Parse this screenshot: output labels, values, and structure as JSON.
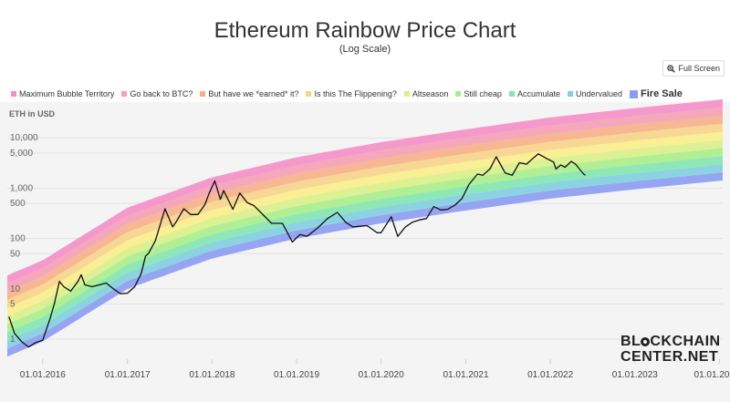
{
  "header": {
    "title": "Ethereum Rainbow Price Chart",
    "subtitle": "(Log Scale)",
    "fullscreen_label": "Full Screen"
  },
  "watermark": {
    "line1_a": "BL",
    "line1_b": "CKCHAIN",
    "line2": "CENTER.NET"
  },
  "colors": {
    "background": "#f4f4f4",
    "price_line": "#111111",
    "bands": [
      "#8c9cf2",
      "#81cfe0",
      "#83e6b0",
      "#a8ee8a",
      "#d9f08a",
      "#fbee8a",
      "#f8d48a",
      "#f6b087",
      "#f5a0b4",
      "#f58fc8"
    ]
  },
  "chart_data": {
    "type": "line",
    "title": "Ethereum Rainbow Price Chart",
    "subtitle": "(Log Scale)",
    "ylabel": "ETH in USD",
    "yscale": "log",
    "ylim": [
      0.4,
      40000
    ],
    "xlim": [
      "2015-08-01",
      "2024-01-15"
    ],
    "y_ticks": [
      {
        "value": 10000,
        "label": "10,000"
      },
      {
        "value": 5000,
        "label": "5,000"
      },
      {
        "value": 1000,
        "label": "1,000"
      },
      {
        "value": 500,
        "label": "500"
      },
      {
        "value": 100,
        "label": "100"
      },
      {
        "value": 50,
        "label": "50"
      },
      {
        "value": 10,
        "label": "10"
      },
      {
        "value": 5,
        "label": "5"
      },
      {
        "value": 1,
        "label": "1"
      }
    ],
    "x_ticks": [
      {
        "date": "2016-01-01",
        "label": "01.01.2016"
      },
      {
        "date": "2017-01-01",
        "label": "01.01.2017"
      },
      {
        "date": "2018-01-01",
        "label": "01.01.2018"
      },
      {
        "date": "2019-01-01",
        "label": "01.01.2019"
      },
      {
        "date": "2020-01-01",
        "label": "01.01.2020"
      },
      {
        "date": "2021-01-01",
        "label": "01.01.2021"
      },
      {
        "date": "2022-01-01",
        "label": "01.01.2022"
      },
      {
        "date": "2023-01-01",
        "label": "01.01.2023"
      },
      {
        "date": "2024-01-01",
        "label": "01.01.20"
      }
    ],
    "legend_position": "top",
    "legend": [
      {
        "label": "Maximum Bubble Territory",
        "color": "#f58fc8"
      },
      {
        "label": "Go back to BTC?",
        "color": "#f5a0b4"
      },
      {
        "label": "But have we *earned* it?",
        "color": "#f6b087"
      },
      {
        "label": "Is this The Flippening?",
        "color": "#f8d48a"
      },
      {
        "label": "Altseason",
        "color": "#d9f08a"
      },
      {
        "label": "Still cheap",
        "color": "#a8ee8a"
      },
      {
        "label": "Accumulate",
        "color": "#83e6b0"
      },
      {
        "label": "Undervalued",
        "color": "#81cfe0"
      },
      {
        "label": "Fire Sale",
        "color": "#8c9cf2",
        "bold": true
      }
    ],
    "rainbow_bands": [
      {
        "name": "Fire Sale",
        "lower": [
          {
            "date": "2015-08-01",
            "value": 0.45
          },
          {
            "date": "2016-01-01",
            "value": 0.9
          },
          {
            "date": "2017-01-01",
            "value": 10
          },
          {
            "date": "2018-01-01",
            "value": 40
          },
          {
            "date": "2019-01-01",
            "value": 100
          },
          {
            "date": "2020-01-01",
            "value": 200
          },
          {
            "date": "2021-01-01",
            "value": 360
          },
          {
            "date": "2022-01-01",
            "value": 620
          },
          {
            "date": "2023-01-01",
            "value": 950
          },
          {
            "date": "2024-01-01",
            "value": 1400
          }
        ]
      }
    ],
    "band_width_factor": 1.45,
    "band_count": 10,
    "series": [
      {
        "name": "ETH",
        "points": [
          [
            "2015-08-08",
            2.8
          ],
          [
            "2015-09-01",
            1.3
          ],
          [
            "2015-10-01",
            0.9
          ],
          [
            "2015-11-01",
            0.7
          ],
          [
            "2015-12-01",
            0.85
          ],
          [
            "2016-01-01",
            0.95
          ],
          [
            "2016-02-01",
            2.5
          ],
          [
            "2016-02-20",
            5
          ],
          [
            "2016-03-13",
            14
          ],
          [
            "2016-04-01",
            11
          ],
          [
            "2016-05-01",
            9
          ],
          [
            "2016-06-01",
            14
          ],
          [
            "2016-06-15",
            19
          ],
          [
            "2016-07-01",
            12
          ],
          [
            "2016-08-01",
            11
          ],
          [
            "2016-09-01",
            12
          ],
          [
            "2016-10-01",
            13
          ],
          [
            "2016-11-01",
            10
          ],
          [
            "2016-12-01",
            8
          ],
          [
            "2017-01-01",
            8.2
          ],
          [
            "2017-02-01",
            11
          ],
          [
            "2017-03-01",
            20
          ],
          [
            "2017-03-20",
            45
          ],
          [
            "2017-04-01",
            50
          ],
          [
            "2017-05-01",
            90
          ],
          [
            "2017-06-12",
            390
          ],
          [
            "2017-07-15",
            170
          ],
          [
            "2017-08-01",
            220
          ],
          [
            "2017-09-01",
            390
          ],
          [
            "2017-10-01",
            300
          ],
          [
            "2017-11-01",
            300
          ],
          [
            "2017-12-01",
            470
          ],
          [
            "2017-12-20",
            800
          ],
          [
            "2018-01-13",
            1400
          ],
          [
            "2018-02-06",
            600
          ],
          [
            "2018-02-20",
            900
          ],
          [
            "2018-04-01",
            380
          ],
          [
            "2018-05-01",
            800
          ],
          [
            "2018-06-01",
            520
          ],
          [
            "2018-07-01",
            450
          ],
          [
            "2018-08-15",
            280
          ],
          [
            "2018-09-15",
            200
          ],
          [
            "2018-11-01",
            200
          ],
          [
            "2018-12-14",
            85
          ],
          [
            "2019-01-15",
            120
          ],
          [
            "2019-02-15",
            110
          ],
          [
            "2019-04-01",
            160
          ],
          [
            "2019-05-15",
            250
          ],
          [
            "2019-06-26",
            330
          ],
          [
            "2019-08-01",
            210
          ],
          [
            "2019-09-01",
            170
          ],
          [
            "2019-10-01",
            175
          ],
          [
            "2019-11-01",
            180
          ],
          [
            "2019-12-15",
            130
          ],
          [
            "2020-01-01",
            130
          ],
          [
            "2020-02-14",
            270
          ],
          [
            "2020-03-13",
            110
          ],
          [
            "2020-04-15",
            170
          ],
          [
            "2020-05-15",
            210
          ],
          [
            "2020-06-15",
            235
          ],
          [
            "2020-07-15",
            250
          ],
          [
            "2020-08-15",
            430
          ],
          [
            "2020-09-15",
            370
          ],
          [
            "2020-10-15",
            380
          ],
          [
            "2020-11-15",
            460
          ],
          [
            "2020-12-15",
            620
          ],
          [
            "2021-01-15",
            1200
          ],
          [
            "2021-02-20",
            1900
          ],
          [
            "2021-03-15",
            1800
          ],
          [
            "2021-04-15",
            2400
          ],
          [
            "2021-05-12",
            4200
          ],
          [
            "2021-06-20",
            2000
          ],
          [
            "2021-07-20",
            1800
          ],
          [
            "2021-08-20",
            3200
          ],
          [
            "2021-09-20",
            3000
          ],
          [
            "2021-10-20",
            4000
          ],
          [
            "2021-11-10",
            4800
          ],
          [
            "2021-12-15",
            3900
          ],
          [
            "2022-01-15",
            3300
          ],
          [
            "2022-01-25",
            2400
          ],
          [
            "2022-02-15",
            2900
          ],
          [
            "2022-03-05",
            2600
          ],
          [
            "2022-04-01",
            3400
          ],
          [
            "2022-04-20",
            3000
          ],
          [
            "2022-05-10",
            2300
          ],
          [
            "2022-05-25",
            1900
          ],
          [
            "2022-06-01",
            1800
          ]
        ]
      }
    ]
  }
}
